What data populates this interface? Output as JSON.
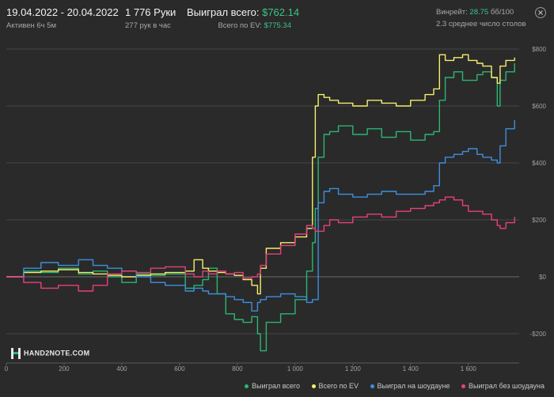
{
  "header": {
    "date_range": "19.04.2022 - 20.04.2022",
    "active": "Активен 6ч 5м",
    "hands": "1 776 Руки",
    "hands_per_hour": "277 рук в час",
    "won_total_label": "Выиграл всего:",
    "won_total_value": "$762.14",
    "ev_label": "Всего по EV:",
    "ev_value": "$775.34",
    "winrate_label": "Винрейт:",
    "winrate_value": "28.75",
    "winrate_unit": "бб/100",
    "avg_tables": "2.3 среднее число столов"
  },
  "logo": {
    "text": "HAND2NOTE.COM",
    "icon": "hand2note-logo-icon"
  },
  "colors": {
    "background": "#2a2a2a",
    "grid": "#4a4a4a",
    "won_total": "#2bb673",
    "ev": "#f4f06a",
    "showdown": "#3d8fe0",
    "non_showdown": "#e8407a"
  },
  "chart_data": {
    "type": "line",
    "title": "",
    "xlabel": "",
    "ylabel": "",
    "xlim": [
      0,
      1776
    ],
    "ylim": [
      -300,
      800
    ],
    "x_ticks": [
      0,
      200,
      400,
      600,
      800,
      1000,
      1200,
      1400,
      1600
    ],
    "x_tick_labels": [
      "0",
      "200",
      "400",
      "600",
      "800",
      "1 000",
      "1 200",
      "1 400",
      "1 600"
    ],
    "y_ticks": [
      -200,
      0,
      200,
      400,
      600,
      800
    ],
    "y_tick_labels": [
      "-$200",
      "$0",
      "$200",
      "$400",
      "$600",
      "$800"
    ],
    "grid": true,
    "legend": "bottom-right",
    "series": [
      {
        "name": "Выиграл всего",
        "color": "#2bb673",
        "x": [
          0,
          60,
          120,
          180,
          250,
          300,
          350,
          400,
          450,
          500,
          550,
          620,
          650,
          680,
          700,
          730,
          760,
          790,
          820,
          850,
          870,
          880,
          900,
          950,
          1000,
          1040,
          1060,
          1070,
          1080,
          1100,
          1120,
          1150,
          1200,
          1250,
          1300,
          1350,
          1400,
          1450,
          1480,
          1500,
          1520,
          1550,
          1580,
          1600,
          1630,
          1650,
          1680,
          1700,
          1710,
          1730,
          1760
        ],
        "values": [
          0,
          20,
          15,
          30,
          10,
          20,
          0,
          -20,
          10,
          5,
          10,
          -40,
          -30,
          -10,
          30,
          -60,
          -130,
          -150,
          -160,
          -140,
          -200,
          -260,
          -160,
          -130,
          -80,
          20,
          120,
          240,
          420,
          500,
          510,
          530,
          500,
          520,
          490,
          510,
          480,
          500,
          510,
          620,
          700,
          720,
          690,
          690,
          710,
          720,
          700,
          600,
          690,
          720,
          750
        ]
      },
      {
        "name": "Всего по EV",
        "color": "#f4f06a",
        "x": [
          0,
          60,
          120,
          180,
          250,
          300,
          350,
          400,
          450,
          500,
          550,
          620,
          650,
          680,
          700,
          730,
          760,
          790,
          820,
          850,
          870,
          880,
          900,
          950,
          1000,
          1040,
          1060,
          1070,
          1080,
          1100,
          1120,
          1150,
          1200,
          1250,
          1300,
          1350,
          1400,
          1450,
          1480,
          1500,
          1520,
          1550,
          1580,
          1600,
          1630,
          1650,
          1680,
          1700,
          1710,
          1730,
          1760
        ],
        "values": [
          0,
          15,
          20,
          25,
          15,
          10,
          5,
          0,
          5,
          10,
          15,
          20,
          60,
          30,
          20,
          15,
          10,
          5,
          -10,
          -30,
          -60,
          30,
          100,
          120,
          140,
          170,
          420,
          600,
          640,
          630,
          620,
          610,
          600,
          620,
          610,
          600,
          620,
          640,
          660,
          780,
          760,
          770,
          780,
          760,
          750,
          740,
          700,
          680,
          740,
          760,
          770
        ]
      },
      {
        "name": "Выиграл на шоудауне",
        "color": "#3d8fe0",
        "x": [
          0,
          60,
          120,
          180,
          250,
          300,
          350,
          400,
          450,
          500,
          550,
          620,
          650,
          680,
          700,
          730,
          760,
          790,
          820,
          850,
          870,
          880,
          900,
          950,
          1000,
          1040,
          1060,
          1070,
          1080,
          1100,
          1120,
          1150,
          1200,
          1250,
          1300,
          1350,
          1400,
          1450,
          1480,
          1500,
          1520,
          1550,
          1580,
          1600,
          1630,
          1650,
          1680,
          1700,
          1710,
          1730,
          1760
        ],
        "values": [
          0,
          30,
          50,
          40,
          60,
          40,
          30,
          20,
          0,
          -20,
          -30,
          -50,
          -40,
          -50,
          -60,
          -60,
          -70,
          -80,
          -90,
          -120,
          -90,
          -80,
          -70,
          -60,
          -70,
          -90,
          -80,
          -80,
          260,
          300,
          310,
          290,
          280,
          290,
          300,
          290,
          290,
          300,
          320,
          400,
          420,
          430,
          440,
          450,
          430,
          420,
          410,
          400,
          460,
          520,
          550
        ]
      },
      {
        "name": "Выиграл без шоудауна",
        "color": "#e8407a",
        "x": [
          0,
          60,
          120,
          180,
          250,
          300,
          350,
          400,
          450,
          500,
          550,
          620,
          650,
          680,
          700,
          730,
          760,
          790,
          820,
          850,
          870,
          880,
          900,
          950,
          1000,
          1040,
          1060,
          1070,
          1080,
          1100,
          1120,
          1150,
          1200,
          1250,
          1300,
          1350,
          1400,
          1450,
          1480,
          1500,
          1520,
          1550,
          1580,
          1600,
          1630,
          1650,
          1680,
          1700,
          1710,
          1730,
          1760
        ],
        "values": [
          0,
          -20,
          -40,
          -30,
          -50,
          -30,
          10,
          20,
          15,
          30,
          35,
          10,
          0,
          20,
          10,
          20,
          10,
          15,
          -5,
          0,
          10,
          40,
          80,
          110,
          150,
          180,
          170,
          160,
          160,
          180,
          200,
          190,
          210,
          220,
          210,
          230,
          240,
          250,
          260,
          270,
          280,
          270,
          250,
          230,
          230,
          220,
          200,
          180,
          170,
          190,
          210
        ]
      }
    ]
  }
}
